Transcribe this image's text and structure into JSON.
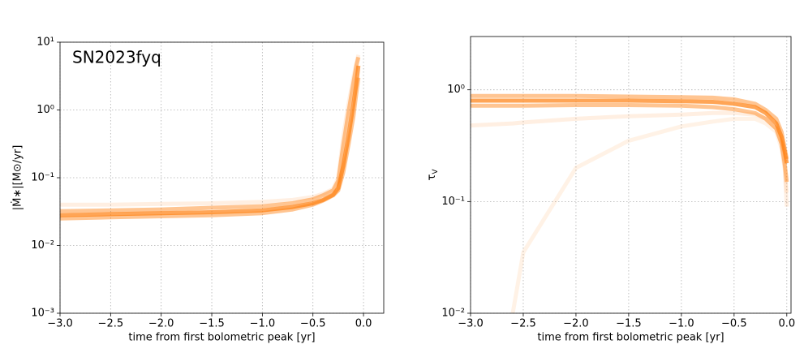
{
  "chart_data": [
    {
      "type": "line",
      "yscale": "log",
      "grid": true,
      "annotation": "SN2023fyq",
      "x_label": "time from first bolometric peak [yr]",
      "y_label": "|Ṁ∗|[M⊙/yr]",
      "xlim": [
        -3.0,
        0.2
      ],
      "ylim": [
        0.001,
        10
      ],
      "xticks": [
        {
          "value": -3.0,
          "label": "−3.0"
        },
        {
          "value": -2.5,
          "label": "−2.5"
        },
        {
          "value": -2.0,
          "label": "−2.0"
        },
        {
          "value": -1.5,
          "label": "−1.5"
        },
        {
          "value": -1.0,
          "label": "−1.0"
        },
        {
          "value": -0.5,
          "label": "−0.5"
        },
        {
          "value": 0,
          "label": "0.0"
        }
      ],
      "yticks": [
        {
          "value": 0.001,
          "label": "10⁻³"
        },
        {
          "value": 0.01,
          "label": "10⁻²"
        },
        {
          "value": 0.1,
          "label": "10⁻¹"
        },
        {
          "value": 1,
          "label": "10⁰"
        },
        {
          "value": 10,
          "label": "10¹"
        }
      ],
      "x": [
        -3.0,
        -2.5,
        -2.0,
        -1.5,
        -1.0,
        -0.7,
        -0.5,
        -0.4,
        -0.3,
        -0.25,
        -0.2,
        -0.15,
        -0.1,
        -0.07,
        -0.05
      ],
      "series": [
        {
          "color": "#ff7f0e",
          "opacity": 0.12,
          "values": [
            0.04,
            0.04,
            0.041,
            0.042,
            0.044,
            0.047,
            0.052,
            0.058,
            0.068,
            0.1,
            0.4,
            1.2,
            3.0,
            5.0,
            6.5
          ]
        },
        {
          "color": "#ff7f0e",
          "opacity": 0.45,
          "values": [
            0.032,
            0.033,
            0.034,
            0.036,
            0.038,
            0.042,
            0.048,
            0.055,
            0.065,
            0.09,
            0.3,
            0.9,
            2.5,
            4.5,
            6.0
          ]
        },
        {
          "color": "#ff7f0e",
          "opacity": 0.45,
          "values": [
            0.025,
            0.026,
            0.027,
            0.028,
            0.03,
            0.034,
            0.04,
            0.046,
            0.055,
            0.065,
            0.12,
            0.3,
            0.8,
            1.8,
            3.0
          ]
        },
        {
          "color": "#ff7f0e",
          "opacity": 0.7,
          "values": [
            0.028,
            0.029,
            0.03,
            0.031,
            0.033,
            0.037,
            0.042,
            0.047,
            0.056,
            0.07,
            0.15,
            0.4,
            1.2,
            2.5,
            4.5
          ]
        }
      ]
    },
    {
      "type": "line",
      "yscale": "log",
      "grid": true,
      "x_label": "time from first bolometric peak [yr]",
      "y_label": {
        "text": "τ",
        "subscript": "V"
      },
      "xlim": [
        -3.0,
        0.04
      ],
      "ylim": [
        0.01,
        3
      ],
      "xticks": [
        {
          "value": -3.0,
          "label": "−3.0"
        },
        {
          "value": -2.5,
          "label": "−2.5"
        },
        {
          "value": -2.0,
          "label": "−2.0"
        },
        {
          "value": -1.5,
          "label": "−1.5"
        },
        {
          "value": -1.0,
          "label": "−1.0"
        },
        {
          "value": -0.5,
          "label": "−0.5"
        },
        {
          "value": 0,
          "label": "0.0"
        }
      ],
      "yticks": [
        {
          "value": 0.01,
          "label": "10⁻²"
        },
        {
          "value": 0.1,
          "label": "10⁻¹"
        },
        {
          "value": 1,
          "label": "10⁰"
        }
      ],
      "x": [
        -3.0,
        -2.6,
        -2.5,
        -2.0,
        -1.5,
        -1.0,
        -0.7,
        -0.5,
        -0.3,
        -0.2,
        -0.1,
        -0.05,
        -0.02,
        0.0
      ],
      "series": [
        {
          "color": "#ff7f0e",
          "opacity": 0.1,
          "values": [
            null,
            0.01,
            0.035,
            0.2,
            0.35,
            0.47,
            0.52,
            0.55,
            0.55,
            0.5,
            0.42,
            0.3,
            0.2,
            0.12
          ]
        },
        {
          "color": "#ff7f0e",
          "opacity": 0.12,
          "values": [
            0.48,
            0.5,
            0.51,
            0.55,
            0.58,
            0.6,
            0.62,
            0.62,
            0.6,
            0.55,
            0.45,
            0.33,
            0.2,
            0.09
          ]
        },
        {
          "color": "#ff7f0e",
          "opacity": 0.45,
          "values": [
            0.88,
            0.88,
            0.88,
            0.88,
            0.87,
            0.86,
            0.85,
            0.82,
            0.75,
            0.66,
            0.55,
            0.42,
            0.3,
            0.24
          ]
        },
        {
          "color": "#ff7f0e",
          "opacity": 0.45,
          "values": [
            0.72,
            0.72,
            0.72,
            0.73,
            0.73,
            0.72,
            0.7,
            0.67,
            0.62,
            0.55,
            0.45,
            0.33,
            0.22,
            0.15
          ]
        },
        {
          "color": "#ff7f0e",
          "opacity": 0.7,
          "values": [
            0.8,
            0.8,
            0.8,
            0.8,
            0.8,
            0.79,
            0.78,
            0.75,
            0.7,
            0.62,
            0.5,
            0.38,
            0.28,
            0.22
          ]
        }
      ]
    }
  ]
}
